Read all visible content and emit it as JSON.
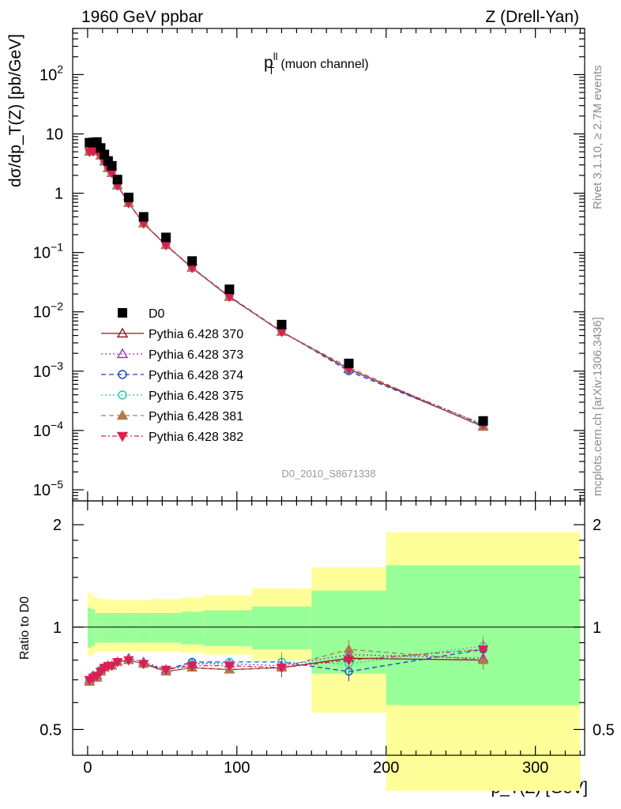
{
  "header": {
    "left": "1960 GeV ppbar",
    "right": "Z (Drell-Yan)"
  },
  "plot_title": {
    "main": "p",
    "sup": "ll",
    "sub": "T",
    "suffix": "(muon channel)"
  },
  "ylabel_main": "dσ/dp_T(Z) [pb/GeV]",
  "ylabel_ratio": "Ratio to D0",
  "xlabel": "p_T(Z) [GeV]",
  "side_labels": {
    "rivet": "Rivet 3.1.10, ≥ 2.7M events",
    "mcplots": "mcplots.cern.ch [arXiv:1306.3436]"
  },
  "analysis_ref": "D0_2010_S8671338",
  "legend_heading": "D0",
  "chart_data": [
    {
      "type": "line",
      "panel": "main",
      "y_scale": "log",
      "xlim": [
        -10,
        333
      ],
      "ylim": [
        6.5e-06,
        600
      ],
      "x_tick_labels": [
        "0",
        "100",
        "200",
        "300"
      ],
      "y_tick_labels": [
        {
          "v": 100,
          "label": "10",
          "exp": "2"
        },
        {
          "v": 10,
          "label": "10",
          "exp": ""
        },
        {
          "v": 1,
          "label": "1",
          "exp": ""
        },
        {
          "v": 0.1,
          "label": "10",
          "exp": "−1"
        },
        {
          "v": 0.01,
          "label": "10",
          "exp": "−2"
        },
        {
          "v": 0.001,
          "label": "10",
          "exp": "−3"
        },
        {
          "v": 0.0001,
          "label": "10",
          "exp": "−4"
        },
        {
          "v": 1e-05,
          "label": "10",
          "exp": "−5"
        }
      ],
      "x": [
        1.25,
        3.75,
        6.25,
        8.75,
        11.25,
        13.75,
        16.25,
        20,
        27.5,
        37.5,
        52.5,
        70,
        95,
        130,
        175,
        265
      ],
      "data": {
        "name": "D0",
        "values": [
          7.1,
          7.2,
          7.3,
          5.8,
          4.5,
          3.5,
          2.9,
          1.7,
          0.85,
          0.4,
          0.18,
          0.072,
          0.024,
          0.0061,
          0.00135,
          0.000145
        ]
      },
      "series": [
        {
          "name": "Pythia 6.428 370",
          "color": "#8b1a1a",
          "dash": "",
          "marker": "triangle-up-open",
          "values": [
            5.0,
            5.1,
            5.2,
            4.3,
            3.4,
            2.65,
            2.2,
            1.35,
            0.68,
            0.31,
            0.133,
            0.055,
            0.0178,
            0.0046,
            0.00108,
            0.000115
          ]
        },
        {
          "name": "Pythia 6.428 373",
          "color": "#9932cc",
          "dash": "2,3",
          "marker": "triangle-up-open",
          "values": [
            5.0,
            5.2,
            5.2,
            4.3,
            3.4,
            2.65,
            2.2,
            1.35,
            0.68,
            0.31,
            0.134,
            0.056,
            0.018,
            0.0046,
            0.0011,
            0.000118
          ]
        },
        {
          "name": "Pythia 6.428 374",
          "color": "#1f3fd6",
          "dash": "6,4",
          "marker": "circle-open",
          "values": [
            5.0,
            5.1,
            5.2,
            4.3,
            3.4,
            2.65,
            2.2,
            1.35,
            0.68,
            0.31,
            0.134,
            0.056,
            0.0183,
            0.0047,
            0.001,
            0.00012
          ]
        },
        {
          "name": "Pythia 6.428 375",
          "color": "#20c8b4",
          "dash": "2,3",
          "marker": "circle-open",
          "values": [
            5.0,
            5.2,
            5.2,
            4.3,
            3.4,
            2.65,
            2.2,
            1.35,
            0.68,
            0.31,
            0.134,
            0.056,
            0.0182,
            0.0047,
            0.00105,
            0.000128
          ]
        },
        {
          "name": "Pythia 6.428 381",
          "color": "#b07a4a",
          "dash": "6,4",
          "marker": "triangle-up-filled",
          "values": [
            5.0,
            5.1,
            5.2,
            4.3,
            3.4,
            2.65,
            2.2,
            1.35,
            0.68,
            0.31,
            0.133,
            0.055,
            0.0178,
            0.0046,
            0.00116,
            0.000115
          ]
        },
        {
          "name": "Pythia 6.428 382",
          "color": "#dc1e50",
          "dash": "6,3,2,3",
          "marker": "triangle-down-filled",
          "values": [
            5.0,
            5.1,
            5.2,
            4.3,
            3.4,
            2.65,
            2.2,
            1.35,
            0.68,
            0.31,
            0.133,
            0.055,
            0.018,
            0.0046,
            0.00108,
            0.000125
          ]
        }
      ]
    },
    {
      "type": "line",
      "panel": "ratio",
      "y_scale": "log",
      "xlim": [
        -10,
        333
      ],
      "ylim": [
        0.42,
        2.35
      ],
      "y_tick_labels": [
        {
          "v": 0.5,
          "label": "0.5"
        },
        {
          "v": 1,
          "label": "1"
        },
        {
          "v": 2,
          "label": "2"
        }
      ],
      "uncertainty_bands": {
        "x_edges": [
          0,
          2.5,
          5,
          7.5,
          10,
          12.5,
          15,
          17.5,
          22.5,
          32.5,
          42.5,
          62.5,
          77.5,
          110,
          150,
          200,
          330
        ],
        "inner_colour": "#99ff99",
        "outer_colour": "#ffff99",
        "inner_lo": [
          0.87,
          0.88,
          0.9,
          0.9,
          0.9,
          0.9,
          0.9,
          0.9,
          0.9,
          0.9,
          0.9,
          0.89,
          0.88,
          0.86,
          0.73,
          0.59
        ],
        "inner_hi": [
          1.14,
          1.13,
          1.1,
          1.1,
          1.1,
          1.1,
          1.1,
          1.1,
          1.1,
          1.1,
          1.1,
          1.11,
          1.12,
          1.15,
          1.28,
          1.52
        ],
        "outer_lo": [
          0.82,
          0.83,
          0.85,
          0.85,
          0.85,
          0.85,
          0.85,
          0.85,
          0.85,
          0.85,
          0.85,
          0.84,
          0.83,
          0.8,
          0.56,
          0.33
        ],
        "outer_hi": [
          1.26,
          1.24,
          1.22,
          1.21,
          1.21,
          1.21,
          1.2,
          1.2,
          1.2,
          1.2,
          1.21,
          1.22,
          1.24,
          1.3,
          1.5,
          1.9
        ]
      },
      "x": [
        1.25,
        3.75,
        6.25,
        8.75,
        11.25,
        13.75,
        16.25,
        20,
        27.5,
        37.5,
        52.5,
        70,
        95,
        130,
        175,
        265
      ],
      "series": [
        {
          "name": "Pythia 6.428 370",
          "values": [
            0.69,
            0.71,
            0.71,
            0.74,
            0.76,
            0.77,
            0.77,
            0.79,
            0.8,
            0.78,
            0.74,
            0.76,
            0.75,
            0.76,
            0.81,
            0.8
          ]
        },
        {
          "name": "Pythia 6.428 373",
          "values": [
            0.7,
            0.72,
            0.72,
            0.75,
            0.76,
            0.77,
            0.77,
            0.79,
            0.81,
            0.79,
            0.75,
            0.78,
            0.78,
            0.77,
            0.83,
            0.81
          ]
        },
        {
          "name": "Pythia 6.428 374",
          "values": [
            0.7,
            0.71,
            0.72,
            0.74,
            0.76,
            0.77,
            0.77,
            0.79,
            0.8,
            0.78,
            0.75,
            0.79,
            0.79,
            0.79,
            0.74,
            0.86
          ]
        },
        {
          "name": "Pythia 6.428 375",
          "values": [
            0.7,
            0.72,
            0.72,
            0.75,
            0.76,
            0.77,
            0.77,
            0.79,
            0.8,
            0.78,
            0.75,
            0.78,
            0.79,
            0.79,
            0.78,
            0.88
          ]
        },
        {
          "name": "Pythia 6.428 381",
          "values": [
            0.69,
            0.71,
            0.71,
            0.74,
            0.76,
            0.77,
            0.77,
            0.79,
            0.8,
            0.78,
            0.74,
            0.76,
            0.75,
            0.76,
            0.86,
            0.8
          ]
        },
        {
          "name": "Pythia 6.428 382",
          "values": [
            0.7,
            0.71,
            0.72,
            0.74,
            0.76,
            0.77,
            0.77,
            0.79,
            0.8,
            0.78,
            0.75,
            0.77,
            0.77,
            0.76,
            0.8,
            0.86
          ]
        }
      ]
    }
  ]
}
